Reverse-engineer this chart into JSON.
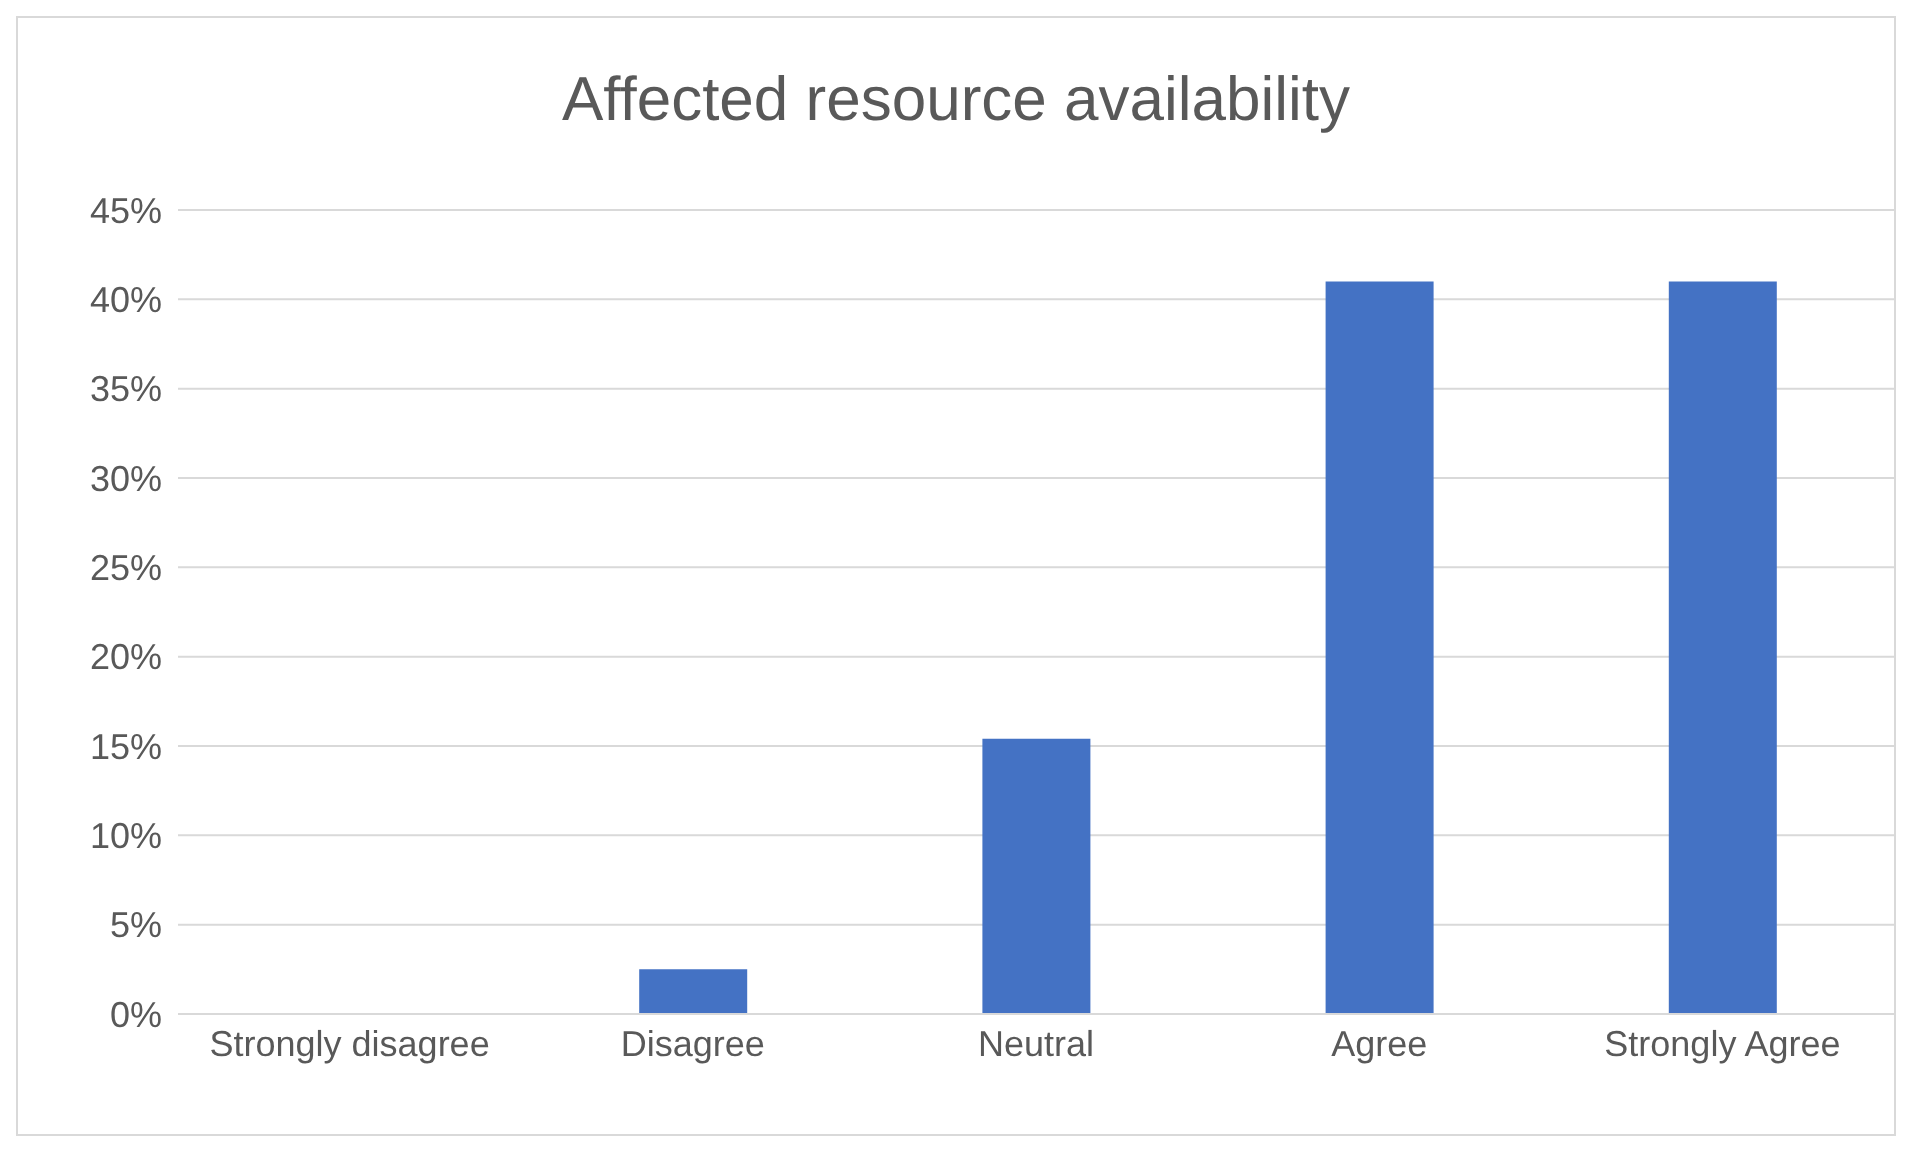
{
  "chart_data": {
    "type": "bar",
    "title": "Affected resource availability",
    "categories": [
      "Strongly disagree",
      "Disagree",
      "Neutral",
      "Agree",
      "Strongly Agree"
    ],
    "values": [
      0,
      2.5,
      15.4,
      41,
      41
    ],
    "color": "#4472c4",
    "ylim": [
      0,
      45
    ],
    "yticks": [
      {
        "value": 0,
        "label": "0%"
      },
      {
        "value": 5,
        "label": "5%"
      },
      {
        "value": 10,
        "label": "10%"
      },
      {
        "value": 15,
        "label": "15%"
      },
      {
        "value": 20,
        "label": "20%"
      },
      {
        "value": 25,
        "label": "25%"
      },
      {
        "value": 30,
        "label": "30%"
      },
      {
        "value": 35,
        "label": "35%"
      },
      {
        "value": 40,
        "label": "40%"
      },
      {
        "value": 45,
        "label": "45%"
      }
    ],
    "grid": "y",
    "legend": false
  }
}
